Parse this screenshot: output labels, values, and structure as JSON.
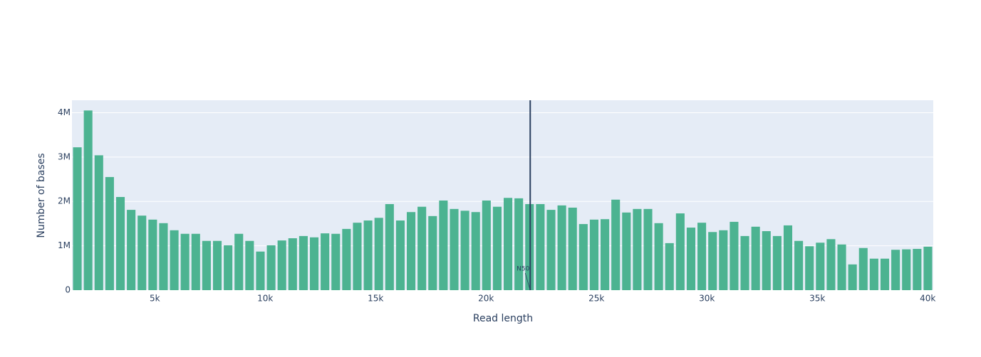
{
  "chart_data": {
    "type": "histogram",
    "xlabel": "Read length",
    "ylabel": "Number of bases",
    "color": "#4cb391",
    "bins": [
      1250,
      1737.5,
      2225,
      2712.5,
      3200,
      3687.5,
      4175,
      4662.5,
      5150,
      5637.5,
      6125,
      6612.5,
      7100,
      7587.5,
      8075,
      8562.5,
      9050,
      9537.5,
      10025,
      10512.5,
      11000,
      11487.5,
      11975,
      12462.5,
      12950,
      13437.5,
      13925,
      14412.5,
      14900,
      15387.5,
      15875,
      16362.5,
      16850,
      17337.5,
      17825,
      18312.5,
      18800,
      19287.5,
      19775,
      20262.5,
      20750,
      21237.5,
      21725,
      22212.5,
      22700,
      23187.5,
      23675,
      24162.5,
      24650,
      25137.5,
      25625,
      26112.5,
      26600,
      27087.5,
      27575,
      28062.5,
      28550,
      29037.5,
      29525,
      30012.5,
      30500,
      30987.5,
      31475,
      31962.5,
      32450,
      32937.5,
      33425,
      33912.5,
      34400,
      34887.5,
      35375,
      35862.5,
      36350,
      36837.5,
      37325,
      37812.5,
      38300,
      38787.5,
      39275,
      39762.5,
      40250
    ],
    "values": [
      3220000,
      4050000,
      3040000,
      2550000,
      2100000,
      1810000,
      1680000,
      1590000,
      1510000,
      1350000,
      1270000,
      1270000,
      1110000,
      1110000,
      1010000,
      1270000,
      1110000,
      870000,
      1010000,
      1120000,
      1170000,
      1220000,
      1190000,
      1280000,
      1270000,
      1380000,
      1520000,
      1570000,
      1630000,
      1940000,
      1570000,
      1760000,
      1880000,
      1670000,
      2020000,
      1830000,
      1790000,
      1760000,
      2020000,
      1880000,
      2080000,
      2070000,
      1940000,
      1940000,
      1810000,
      1910000,
      1860000,
      1490000,
      1590000,
      1600000,
      2040000,
      1750000,
      1830000,
      1830000,
      1510000,
      1060000,
      1730000,
      1410000,
      1520000,
      1310000,
      1350000,
      1540000,
      1220000,
      1430000,
      1330000,
      1220000,
      1460000,
      1110000,
      990000,
      1070000,
      1150000,
      1030000,
      580000,
      950000,
      710000,
      710000,
      910000,
      920000,
      930000,
      980000
    ],
    "xlim": [
      1250,
      40250
    ],
    "xticks": [
      {
        "value": 5000,
        "label": "5k"
      },
      {
        "value": 10000,
        "label": "10k"
      },
      {
        "value": 15000,
        "label": "15k"
      },
      {
        "value": 20000,
        "label": "20k"
      },
      {
        "value": 25000,
        "label": "25k"
      },
      {
        "value": 30000,
        "label": "30k"
      },
      {
        "value": 35000,
        "label": "35k"
      },
      {
        "value": 40000,
        "label": "40k"
      }
    ],
    "ylim": [
      0,
      4280000
    ],
    "yticks": [
      0,
      {
        "value": 1000000,
        "label": "1M"
      },
      {
        "value": 2000000,
        "label": "2M"
      },
      {
        "value": 3000000,
        "label": "3M"
      },
      {
        "value": 4000000,
        "label": "4M"
      }
    ],
    "grid": true,
    "n50": 22000,
    "n50_label": "N50"
  }
}
